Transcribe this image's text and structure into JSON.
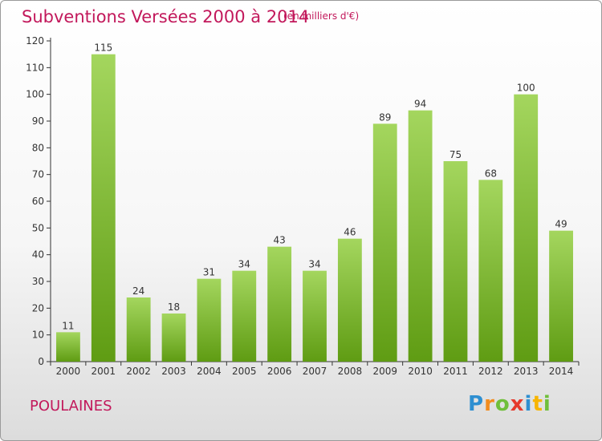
{
  "header": {
    "title": "Subventions Versées 2000 à 2014",
    "subtitle": "(en milliers d'€)"
  },
  "footer": {
    "commune": "POULAINES",
    "logo_letters": [
      "P",
      "r",
      "o",
      "x",
      "i",
      "t",
      "i"
    ],
    "logo_colors": [
      "#2e8fd1",
      "#f28c1e",
      "#6fbf3a",
      "#e63a2c",
      "#2e8fd1",
      "#f7b500",
      "#6fbf3a"
    ]
  },
  "chart_data": {
    "type": "bar",
    "title": "Subventions Versées 2000 à 2014",
    "subtitle": "(en milliers d'€)",
    "xlabel": "",
    "ylabel": "",
    "categories": [
      "2000",
      "2001",
      "2002",
      "2003",
      "2004",
      "2005",
      "2006",
      "2007",
      "2008",
      "2009",
      "2010",
      "2011",
      "2012",
      "2013",
      "2014"
    ],
    "values": [
      11,
      115,
      24,
      18,
      31,
      34,
      43,
      34,
      46,
      89,
      94,
      75,
      68,
      100,
      49
    ],
    "ylim": [
      0,
      120
    ],
    "yticks": [
      0,
      10,
      20,
      30,
      40,
      50,
      60,
      70,
      80,
      90,
      100,
      110,
      120
    ],
    "grid": false,
    "bar_color_top": "#a4d65e",
    "bar_color_bottom": "#5f9c13",
    "data_labels": true
  }
}
